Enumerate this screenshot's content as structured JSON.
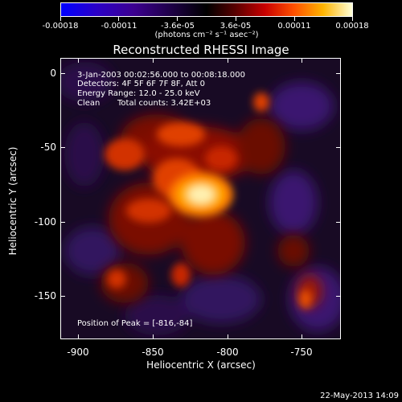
{
  "colorbar": {
    "tick_labels": [
      "-0.00018",
      "-0.00011",
      "-3.6e-05",
      "3.6e-05",
      "0.00011",
      "0.00018"
    ],
    "unit_label": "(photons cm⁻² s⁻¹ asec⁻²)",
    "range": [
      -0.00018,
      0.00018
    ]
  },
  "chart_data": {
    "type": "heatmap",
    "title": "Reconstructed RHESSI Image",
    "xlabel": "Heliocentric X (arcsec)",
    "ylabel": "Heliocentric Y (arcsec)",
    "xlim": [
      -912,
      -722
    ],
    "ylim": [
      -183,
      8
    ],
    "x_ticks": [
      -900,
      -850,
      -800,
      -750
    ],
    "y_ticks": [
      0,
      -50,
      -100,
      -150
    ],
    "peak": {
      "x": -816,
      "y": -84
    },
    "annotations": {
      "time": "3-Jan-2003 00:02:56.000 to 00:08:18.000",
      "detectors": "Detectors: 4F 5F 6F 7F 8F, Att 0",
      "energy": "Energy Range: 12.0 - 25.0 keV",
      "clean": "Clean",
      "counts": "Total counts: 3.42E+03",
      "peak_text": "Position of Peak = [-816,-84]"
    }
  },
  "footer": {
    "timestamp": "22-May-2013 14:09"
  }
}
